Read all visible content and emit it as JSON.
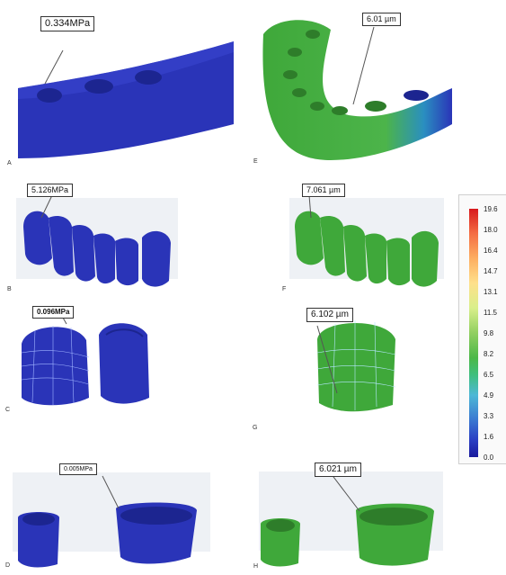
{
  "panels": [
    {
      "id": "A",
      "letter": "A",
      "callout": "0.334MPa"
    },
    {
      "id": "B",
      "letter": "B",
      "callout": "5.126MPa"
    },
    {
      "id": "C",
      "letter": "C",
      "callout": "0.096MPa"
    },
    {
      "id": "D",
      "letter": "D",
      "callout": "0.005MPa"
    },
    {
      "id": "E",
      "letter": "E",
      "callout": "6.01 µm"
    },
    {
      "id": "F",
      "letter": "F",
      "callout": "7.061 µm"
    },
    {
      "id": "G",
      "letter": "G",
      "callout": "6.102 µm"
    },
    {
      "id": "H",
      "letter": "H",
      "callout": "6.021 µm"
    }
  ],
  "legend": {
    "ticks": [
      "19.6",
      "18.0",
      "16.4",
      "14.7",
      "13.1",
      "11.5",
      "9.8",
      "8.2",
      "6.5",
      "4.9",
      "3.3",
      "1.6",
      "0.0"
    ]
  },
  "colors": {
    "stress_blue": "#2a34b8",
    "displacement_green": "#3fa83a",
    "background": "#ffffff"
  }
}
